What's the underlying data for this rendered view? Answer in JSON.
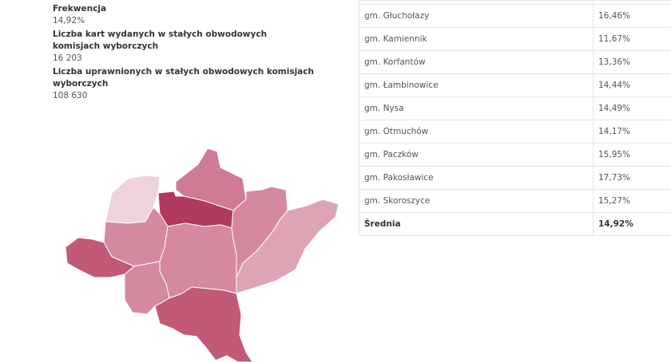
{
  "stats": {
    "turnout_label": "Frekwencja",
    "turnout_value": "14,92%",
    "cards_label": "Liczba kart wydanych w stałych obwodowych komisjach wyborczych",
    "cards_value": "16 203",
    "eligible_label": "Liczba uprawnionych w stałych obwodowych komisjach wyborczych",
    "eligible_value": "108 630"
  },
  "table": {
    "rows": [
      {
        "name": "gm. Głuchołazy",
        "value": "16,46%"
      },
      {
        "name": "gm. Kamiennik",
        "value": "11,67%"
      },
      {
        "name": "gm. Korfantów",
        "value": "13,36%"
      },
      {
        "name": "gm. Łambinowice",
        "value": "14,44%"
      },
      {
        "name": "gm. Nysa",
        "value": "14,49%"
      },
      {
        "name": "gm. Otmuchów",
        "value": "14,17%"
      },
      {
        "name": "gm. Paczków",
        "value": "15,95%"
      },
      {
        "name": "gm. Pakosławice",
        "value": "17,73%"
      },
      {
        "name": "gm. Skoroszyce",
        "value": "15,27%"
      }
    ],
    "average": {
      "name": "Średnia",
      "value": "14,92%"
    }
  },
  "map_colors": {
    "darkest": "#b03a5b",
    "dark": "#c25a75",
    "medium_dark": "#cf7b92",
    "medium": "#d5899c",
    "light": "#dda5b3",
    "lightest": "#efd3da"
  }
}
